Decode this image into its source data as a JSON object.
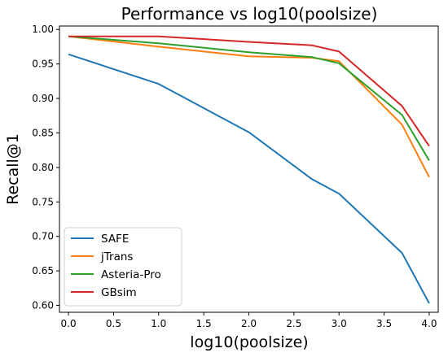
{
  "chart_data": {
    "type": "line",
    "title": "Performance vs log10(poolsize)",
    "xlabel": "log10(poolsize)",
    "ylabel": "Recall@1",
    "xlim": [
      -0.1,
      4.1
    ],
    "ylim": [
      0.59,
      1.005
    ],
    "xticks": [
      0.0,
      0.5,
      1.0,
      1.5,
      2.0,
      2.5,
      3.0,
      3.5,
      4.0
    ],
    "yticks": [
      0.6,
      0.65,
      0.7,
      0.75,
      0.8,
      0.85,
      0.9,
      0.95,
      1.0
    ],
    "x": [
      0,
      1,
      2,
      2.699,
      3,
      3.699,
      4
    ],
    "legend_position": "lower-left",
    "grid": false,
    "series": [
      {
        "name": "SAFE",
        "color": "#1f77b4",
        "values": [
          0.964,
          0.921,
          0.851,
          0.783,
          0.762,
          0.676,
          0.603
        ]
      },
      {
        "name": "jTrans",
        "color": "#ff7f0e",
        "values": [
          0.99,
          0.975,
          0.961,
          0.959,
          0.954,
          0.862,
          0.786
        ]
      },
      {
        "name": "Asteria-Pro",
        "color": "#2ca02c",
        "values": [
          0.99,
          0.98,
          0.967,
          0.96,
          0.951,
          0.876,
          0.81
        ]
      },
      {
        "name": "GBsim",
        "color": "#d62728",
        "values": [
          0.99,
          0.99,
          0.982,
          0.977,
          0.968,
          0.889,
          0.831
        ]
      }
    ]
  }
}
